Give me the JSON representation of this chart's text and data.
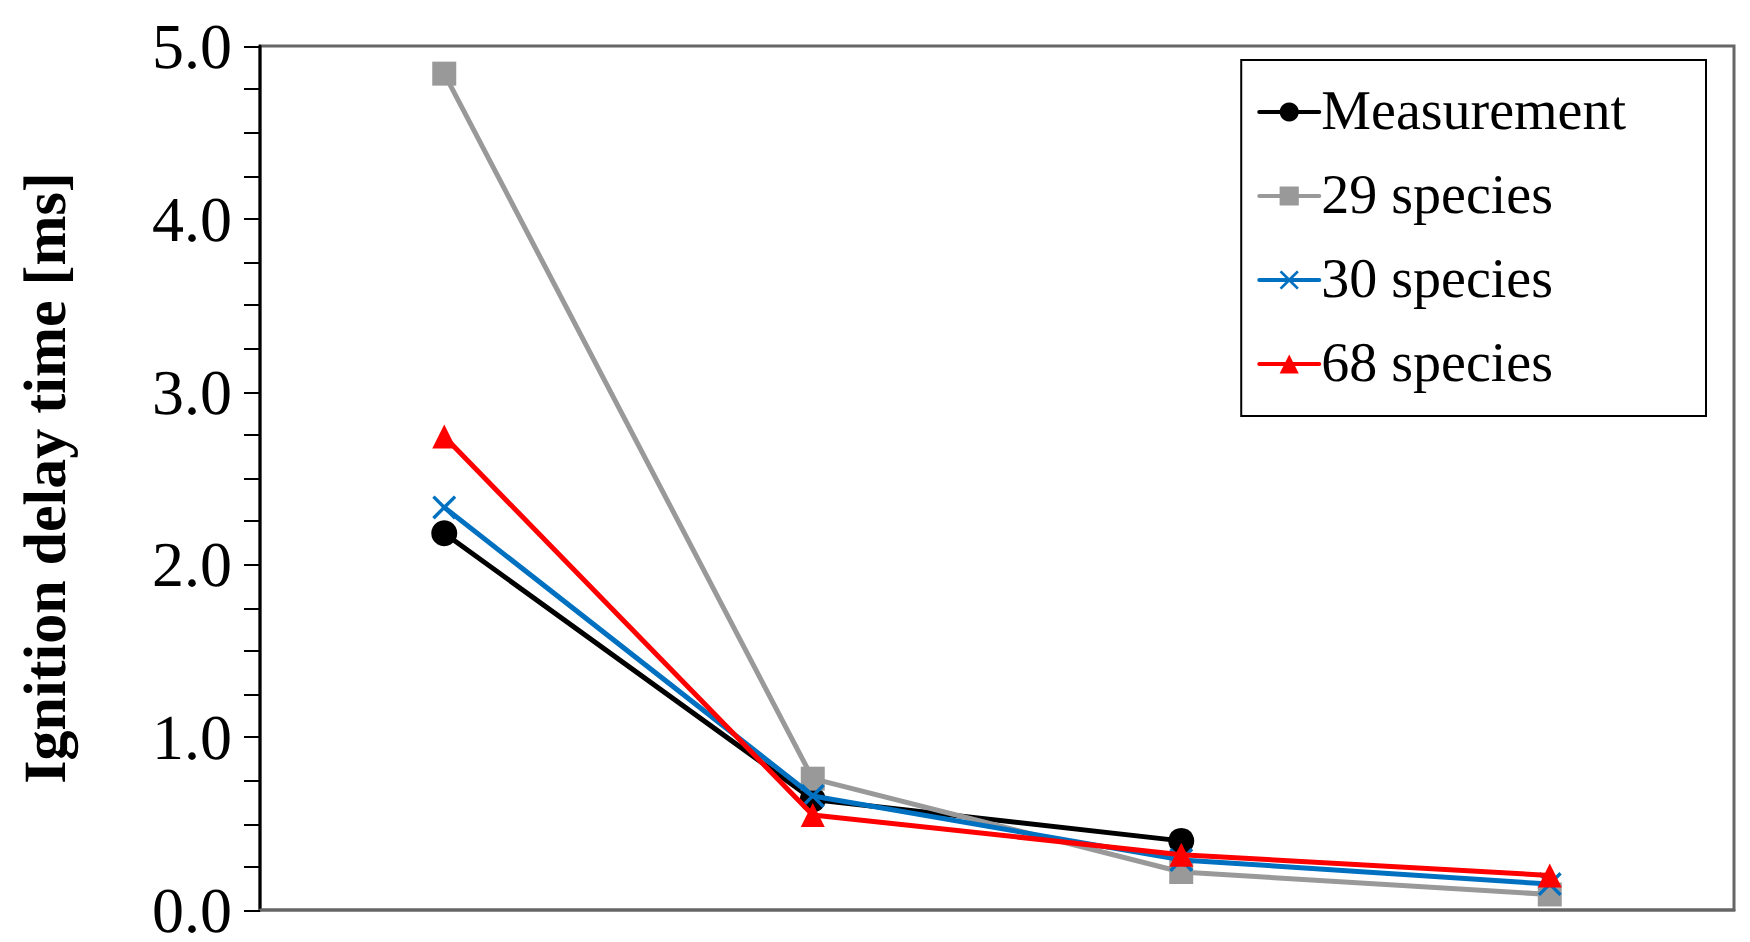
{
  "chart_data": {
    "type": "line",
    "ylabel": "Ignition delay time [ms]",
    "categories": [
      null,
      null,
      null,
      null
    ],
    "series": [
      {
        "name": "Measurement",
        "color": "#000000",
        "marker": "circle",
        "values": [
          2.18,
          0.64,
          0.4,
          null
        ]
      },
      {
        "name": "29 species",
        "color": "#999999",
        "marker": "square",
        "values": [
          4.84,
          0.76,
          0.22,
          0.09
        ]
      },
      {
        "name": "30 species",
        "color": "#0070c0",
        "marker": "cross",
        "values": [
          2.33,
          0.66,
          0.29,
          0.15
        ]
      },
      {
        "name": "68 species",
        "color": "#ff0000",
        "marker": "triangle",
        "values": [
          2.74,
          0.55,
          0.32,
          0.2
        ]
      }
    ],
    "ylim": [
      0,
      5
    ],
    "yticks": [
      {
        "value": 0,
        "label": "0.0"
      },
      {
        "value": 0.25,
        "label": null
      },
      {
        "value": 0.5,
        "label": null
      },
      {
        "value": 0.75,
        "label": null
      },
      {
        "value": 1,
        "label": "1.0"
      },
      {
        "value": 1.25,
        "label": null
      },
      {
        "value": 1.5,
        "label": null
      },
      {
        "value": 1.75,
        "label": null
      },
      {
        "value": 2,
        "label": "2.0"
      },
      {
        "value": 2.25,
        "label": null
      },
      {
        "value": 2.5,
        "label": null
      },
      {
        "value": 2.75,
        "label": null
      },
      {
        "value": 3,
        "label": "3.0"
      },
      {
        "value": 3.25,
        "label": null
      },
      {
        "value": 3.5,
        "label": null
      },
      {
        "value": 3.75,
        "label": null
      },
      {
        "value": 4,
        "label": "4.0"
      },
      {
        "value": 4.25,
        "label": null
      },
      {
        "value": 4.5,
        "label": null
      },
      {
        "value": 4.75,
        "label": null
      },
      {
        "value": 5,
        "label": "5.0"
      }
    ],
    "grid": false,
    "legend": "top right",
    "tick_labels": "y",
    "line_style": "solid"
  }
}
